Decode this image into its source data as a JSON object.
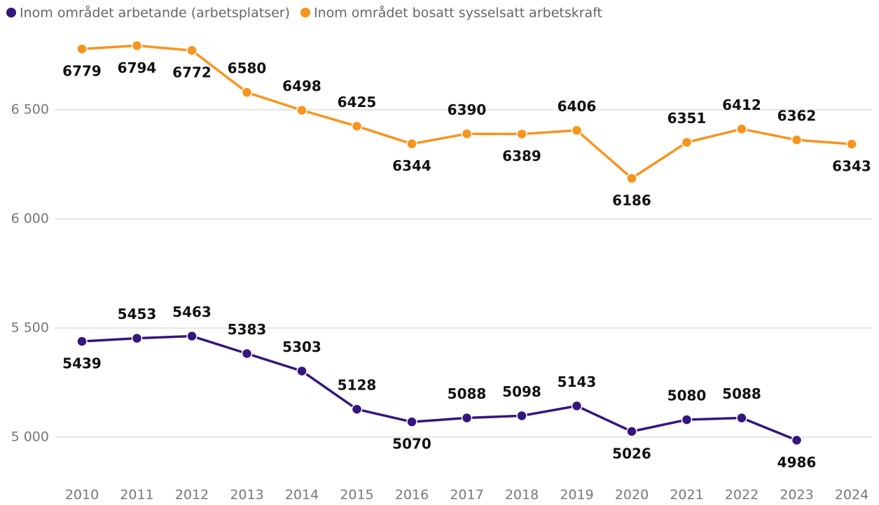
{
  "chart_data": {
    "type": "line",
    "categories": [
      "2010",
      "2011",
      "2012",
      "2013",
      "2014",
      "2015",
      "2016",
      "2017",
      "2018",
      "2019",
      "2020",
      "2021",
      "2022",
      "2023",
      "2024"
    ],
    "series": [
      {
        "name": "Inom området arbetande (arbetsplatser)",
        "color": "#35167f",
        "values": [
          5439,
          5453,
          5463,
          5383,
          5303,
          5128,
          5070,
          5088,
          5098,
          5143,
          5026,
          5080,
          5088,
          4986,
          null
        ]
      },
      {
        "name": "Inom området bosatt sysselsatt arbetskraft",
        "color": "#f7941d",
        "values": [
          6779,
          6794,
          6772,
          6580,
          6498,
          6425,
          6344,
          6390,
          6389,
          6406,
          6186,
          6351,
          6412,
          6362,
          6343
        ]
      }
    ],
    "ylim": [
      4800,
      7000
    ],
    "yticks": [
      {
        "value": 5000,
        "label": "5 000"
      },
      {
        "value": 5500,
        "label": "5 500"
      },
      {
        "value": 6000,
        "label": "6 000"
      },
      {
        "value": 6500,
        "label": "6 500"
      }
    ],
    "grid": true,
    "legend": "top-left"
  }
}
